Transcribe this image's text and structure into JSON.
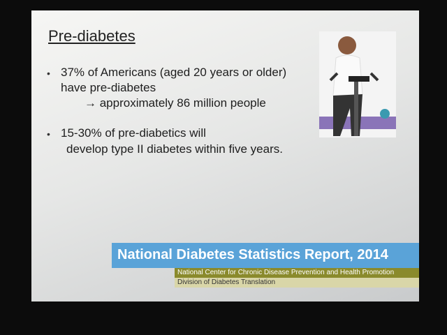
{
  "slide": {
    "title": "Pre-diabetes",
    "bullets": [
      {
        "lines": [
          "37% of Americans (aged 20 years or older)",
          "have pre-diabetes"
        ],
        "sub": "→ approximately 86 million people"
      },
      {
        "lines": [
          "15-30% of pre-diabetics will",
          "develop type II diabetes within five years."
        ]
      }
    ],
    "banner": {
      "title": "National Diabetes Statistics Report, 2014",
      "line1": "National Center for Chronic Disease Prevention and Health Promotion",
      "line2": "Division of Diabetes Translation"
    }
  }
}
